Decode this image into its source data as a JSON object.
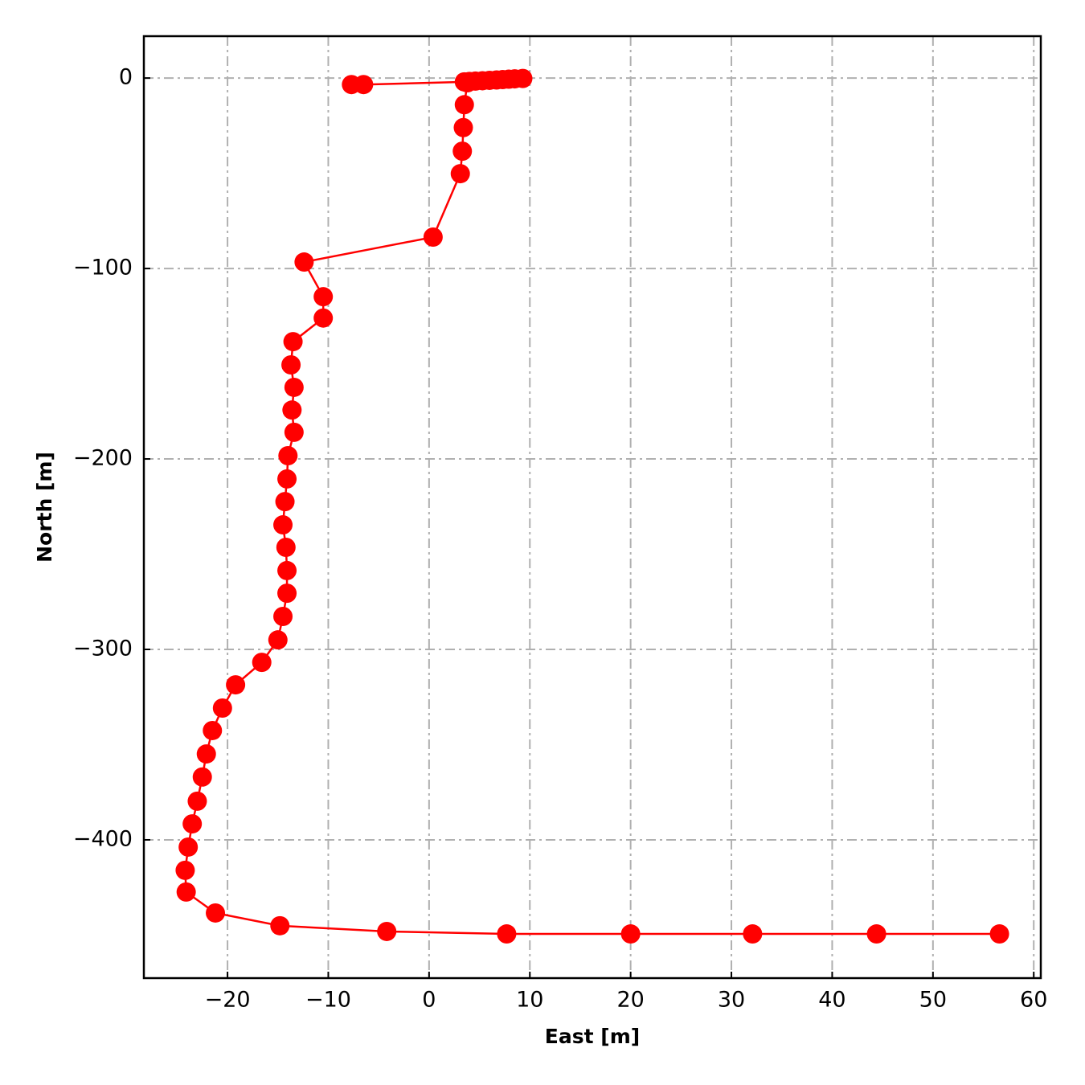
{
  "chart_data": {
    "type": "line",
    "xlabel": "East [m]",
    "ylabel": "North [m]",
    "x": [
      -7.7,
      -6.5,
      3.5,
      4.0,
      4.6,
      5.3,
      6.0,
      6.7,
      7.3,
      7.9,
      8.5,
      9.3,
      3.8,
      3.5,
      3.4,
      3.3,
      3.1,
      0.4,
      -12.4,
      -10.5,
      -10.5,
      -13.5,
      -13.7,
      -13.4,
      -13.6,
      -13.4,
      -14.0,
      -14.1,
      -14.3,
      -14.5,
      -14.2,
      -14.1,
      -14.1,
      -14.5,
      -15.0,
      -16.6,
      -19.2,
      -20.5,
      -21.5,
      -22.1,
      -22.5,
      -23.0,
      -23.5,
      -23.9,
      -24.2,
      -24.1,
      -21.2,
      -14.8,
      -4.2,
      7.7,
      20.0,
      32.1,
      44.4,
      56.6
    ],
    "series": [
      {
        "color": "#ff0000",
        "values": [
          -3.4,
          -3.4,
          -2.0,
          -1.8,
          -1.6,
          -1.4,
          -1.2,
          -1.0,
          -0.8,
          -0.6,
          -0.4,
          -0.2,
          -2.5,
          -14.0,
          -26.0,
          -38.4,
          -50.2,
          -83.5,
          -96.6,
          -114.8,
          -126.0,
          -138.4,
          -150.6,
          -162.4,
          -174.3,
          -186.0,
          -198.3,
          -210.5,
          -222.4,
          -234.6,
          -246.4,
          -258.6,
          -270.5,
          -282.7,
          -295.0,
          -306.8,
          -318.6,
          -330.8,
          -342.6,
          -354.9,
          -367.0,
          -379.7,
          -391.6,
          -403.8,
          -416.0,
          -427.4,
          -438.4,
          -445.1,
          -448.1,
          -449.4,
          -449.4,
          -449.4,
          -449.4,
          -449.4
        ]
      }
    ],
    "xlim": [
      -28.3,
      60.7
    ],
    "ylim": [
      -472.6,
      22
    ],
    "xticks": [
      {
        "value": -20,
        "label": "−20"
      },
      {
        "value": -10,
        "label": "−10"
      },
      0,
      10,
      20,
      30,
      40,
      50,
      60
    ],
    "yticks": [
      {
        "value": -400,
        "label": "−400"
      },
      {
        "value": -300,
        "label": "−300"
      },
      {
        "value": -200,
        "label": "−200"
      },
      {
        "value": -100,
        "label": "−100"
      },
      0
    ],
    "grid": true
  }
}
